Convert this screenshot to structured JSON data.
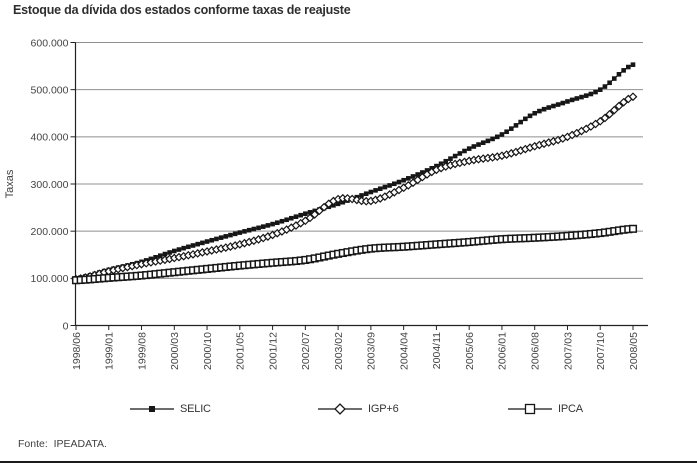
{
  "page": {
    "title": "Estoque da dívida dos estados conforme taxas de reajuste",
    "source": "Fonte:  IPEADATA."
  },
  "chart_data": {
    "type": "line",
    "title": "Estoque da dívida dos estados conforme taxas de reajuste",
    "xlabel": "",
    "ylabel": "Taxas",
    "ylim": [
      0,
      600000
    ],
    "y_tick_labels": [
      "0",
      "100.000",
      "200.000",
      "300.000",
      "400.000",
      "500.000",
      "600.000"
    ],
    "x_tick_labels": [
      "1998/06",
      "1999/01",
      "1999/08",
      "2000/03",
      "2000/10",
      "2001/05",
      "2001/12",
      "2002/07",
      "2003/02",
      "2003/09",
      "2004/04",
      "2004/11",
      "2005/06",
      "2006/01",
      "2006/08",
      "2007/03",
      "2007/10",
      "2008/05"
    ],
    "x_frequency": "monthly",
    "months_per_tick": 7,
    "n_points": 120,
    "grid": "horizontal-gray",
    "legend_position": "bottom",
    "series": [
      {
        "name": "SELIC",
        "marker": "filled-square",
        "color": "#161616",
        "values_at_ticks": [
          100000,
          118000,
          135000,
          158000,
          178000,
          197000,
          215000,
          237000,
          258000,
          283000,
          308000,
          338000,
          375000,
          405000,
          450000,
          475000,
          500000,
          553000
        ]
      },
      {
        "name": "IGP+6",
        "marker": "open-diamond",
        "color": "#161616",
        "values_at_ticks": [
          98000,
          115000,
          130000,
          143000,
          157000,
          172000,
          192000,
          222000,
          268000,
          264000,
          292000,
          330000,
          349000,
          360000,
          380000,
          400000,
          433000,
          485000
        ]
      },
      {
        "name": "IPCA",
        "marker": "open-square",
        "color": "#161616",
        "values_at_ticks": [
          96000,
          101000,
          106000,
          113000,
          120000,
          127000,
          133000,
          139000,
          152000,
          163000,
          167000,
          172000,
          177000,
          183000,
          186000,
          190000,
          196000,
          205000
        ]
      }
    ],
    "colors": {
      "line": "#161616",
      "grid": "#8f8f8f",
      "axis": "#222222",
      "tick_text": "#454545"
    }
  }
}
